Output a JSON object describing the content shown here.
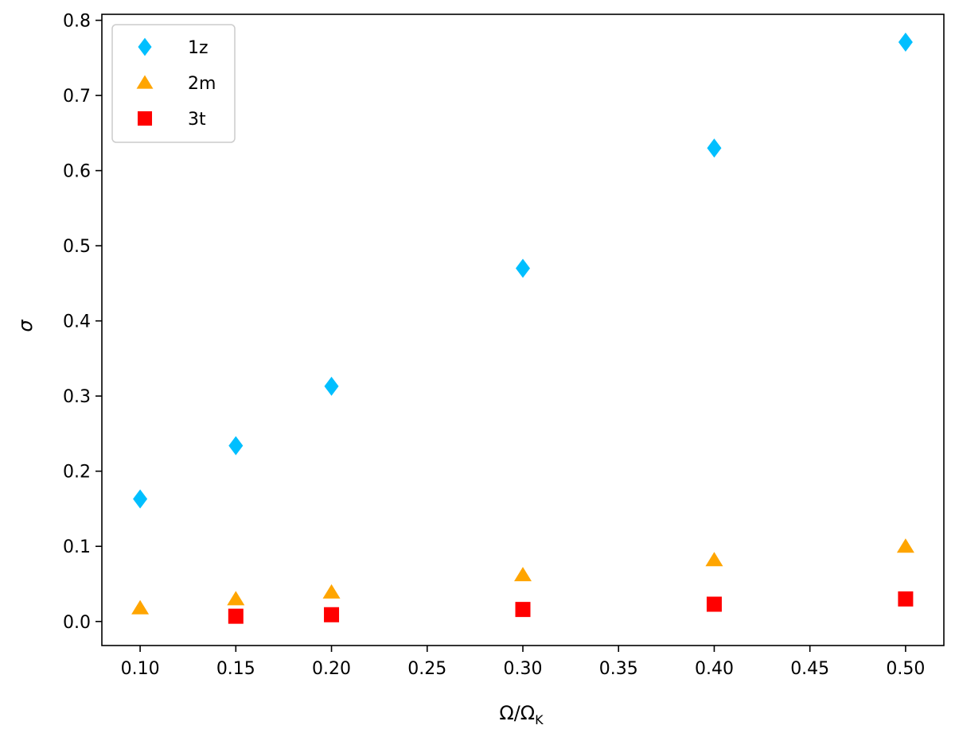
{
  "chart_data": {
    "type": "scatter",
    "title": "",
    "xlabel": "Ω/Ω",
    "xlabel_sub": "K",
    "ylabel": "σ",
    "xlim": [
      0.08,
      0.52
    ],
    "ylim": [
      -0.032,
      0.808
    ],
    "xticks": [
      0.1,
      0.15,
      0.2,
      0.25,
      0.3,
      0.35,
      0.4,
      0.45,
      0.5
    ],
    "xtick_labels": [
      "0.10",
      "0.15",
      "0.20",
      "0.25",
      "0.30",
      "0.35",
      "0.40",
      "0.45",
      "0.50"
    ],
    "yticks": [
      0.0,
      0.1,
      0.2,
      0.3,
      0.4,
      0.5,
      0.6,
      0.7,
      0.8
    ],
    "ytick_labels": [
      "0.0",
      "0.1",
      "0.2",
      "0.3",
      "0.4",
      "0.5",
      "0.6",
      "0.7",
      "0.8"
    ],
    "grid": false,
    "legend_position": "top-left",
    "series": [
      {
        "name": "1z",
        "marker": "diamond",
        "color": "#00bfff",
        "points": [
          {
            "x": 0.1,
            "y": 0.163
          },
          {
            "x": 0.15,
            "y": 0.234
          },
          {
            "x": 0.2,
            "y": 0.313
          },
          {
            "x": 0.3,
            "y": 0.47
          },
          {
            "x": 0.4,
            "y": 0.63
          },
          {
            "x": 0.5,
            "y": 0.771
          }
        ]
      },
      {
        "name": "2m",
        "marker": "triangle",
        "color": "#ffa500",
        "points": [
          {
            "x": 0.1,
            "y": 0.018
          },
          {
            "x": 0.15,
            "y": 0.03
          },
          {
            "x": 0.2,
            "y": 0.039
          },
          {
            "x": 0.3,
            "y": 0.062
          },
          {
            "x": 0.4,
            "y": 0.082
          },
          {
            "x": 0.5,
            "y": 0.1
          }
        ]
      },
      {
        "name": "3t",
        "marker": "square",
        "color": "#ff0000",
        "points": [
          {
            "x": 0.15,
            "y": 0.007
          },
          {
            "x": 0.2,
            "y": 0.009
          },
          {
            "x": 0.3,
            "y": 0.016
          },
          {
            "x": 0.4,
            "y": 0.023
          },
          {
            "x": 0.5,
            "y": 0.03
          }
        ]
      }
    ]
  }
}
